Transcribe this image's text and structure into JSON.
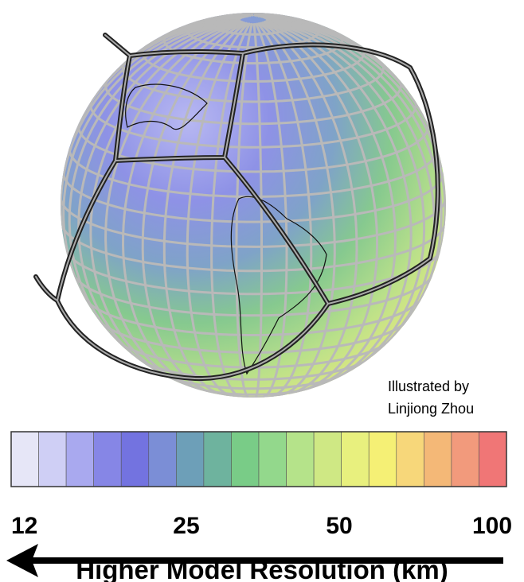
{
  "credit": [
    "Illustrated by",
    "Linjiong Zhou"
  ],
  "colorbar": {
    "scale": "log",
    "lim": [
      11.3,
      106.7
    ],
    "ticks": [
      12,
      25,
      50,
      100
    ],
    "label": "Higher Model Resolution (km)",
    "colors": [
      "#e6e6f7",
      "#cfcff5",
      "#a9a9ef",
      "#8686e6",
      "#7373e0",
      "#7b8ed6",
      "#6d9fb8",
      "#6eb39e",
      "#79cc87",
      "#93d88c",
      "#b5e38a",
      "#cfe884",
      "#e8f07e",
      "#f5f075",
      "#f7d77a",
      "#f4b877",
      "#f29a7c",
      "#f07676"
    ]
  }
}
